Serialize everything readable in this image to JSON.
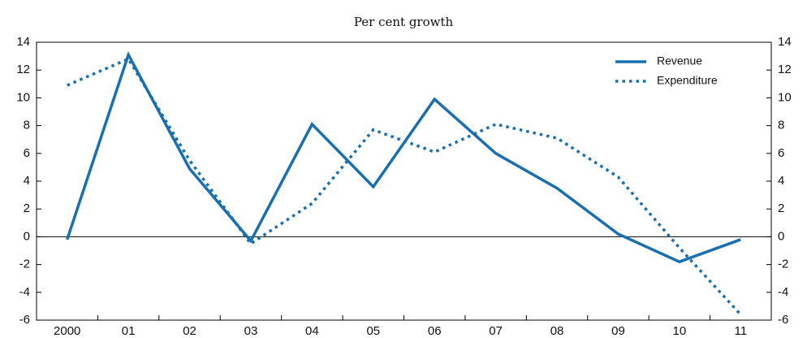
{
  "chart_data": {
    "type": "line",
    "subtitle": "Per cent growth",
    "categories": [
      "2000",
      "01",
      "02",
      "03",
      "04",
      "05",
      "06",
      "07",
      "08",
      "09",
      "10",
      "11"
    ],
    "series": [
      {
        "name": "Revenue",
        "color": "#1a6faf",
        "dash": "solid",
        "values": [
          -0.2,
          13.1,
          4.9,
          -0.3,
          8.1,
          3.6,
          9.9,
          6.0,
          3.5,
          0.2,
          -1.8,
          -0.2
        ]
      },
      {
        "name": "Expenditure",
        "color": "#1a6faf",
        "dash": "dotted",
        "values": [
          10.9,
          12.8,
          5.5,
          -0.5,
          2.4,
          7.7,
          6.1,
          8.1,
          7.1,
          4.3,
          -0.8,
          -5.6
        ]
      }
    ],
    "ylim": [
      -6,
      14
    ],
    "yticks": [
      -6,
      -4,
      -2,
      0,
      2,
      4,
      6,
      8,
      10,
      12,
      14
    ],
    "y2lim": [
      -6,
      14
    ],
    "y2ticks": [
      -6,
      -4,
      -2,
      0,
      2,
      4,
      6,
      8,
      10,
      12,
      14
    ],
    "legend": "upper right"
  }
}
